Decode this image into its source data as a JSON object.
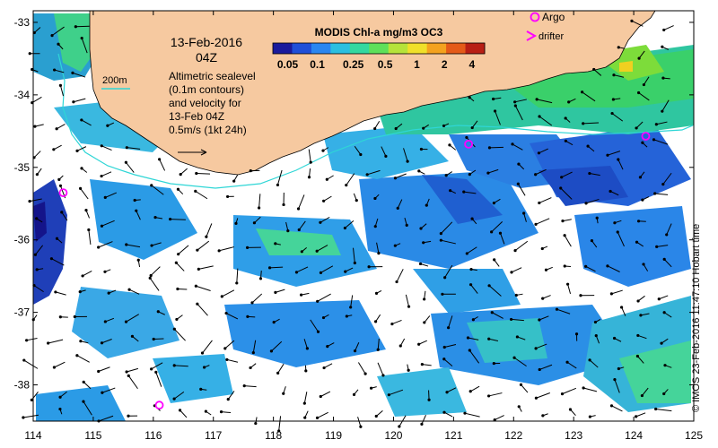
{
  "title_date": "13-Feb-2016",
  "title_time": "04Z",
  "altimetry_lines": [
    "Altimetric sealevel",
    "(0.1m contours)",
    "and velocity for",
    "13-Feb 04Z",
    "0.5m/s (1kt 24h)"
  ],
  "isobath_label": "200m",
  "colorbar": {
    "title": "MODIS Chl-a mg/m3 OC3",
    "ticks": [
      "0.05",
      "0.1",
      "0.25",
      "0.5",
      "1",
      "2",
      "4"
    ],
    "colors": [
      "#1a1a9c",
      "#1f4fd8",
      "#2a86f0",
      "#2bbfe0",
      "#34d8a0",
      "#5ee05a",
      "#b6e33a",
      "#f0e02a",
      "#f4a21e",
      "#e45a18",
      "#b81e14"
    ]
  },
  "legend": {
    "argo_label": "Argo",
    "drifter_label": "drifter",
    "argo_color": "#ff00ff",
    "drifter_color": "#ff00ff"
  },
  "x_ticks": [
    "114",
    "115",
    "116",
    "117",
    "118",
    "119",
    "120",
    "121",
    "122",
    "123",
    "124",
    "125"
  ],
  "y_ticks": [
    "-33",
    "-34",
    "-35",
    "-36",
    "-37",
    "-38"
  ],
  "credit": "© IMOS 23-Feb-2016 11:47:10 Hobart time",
  "argo_floats": [
    {
      "lon": 114.5,
      "lat": -35.35
    },
    {
      "lon": 121.25,
      "lat": -34.68
    },
    {
      "lon": 124.2,
      "lat": -34.57
    },
    {
      "lon": 116.1,
      "lat": -38.28
    }
  ],
  "colors": {
    "land": "#f6c9a0",
    "isobath": "#2fd6d6"
  }
}
